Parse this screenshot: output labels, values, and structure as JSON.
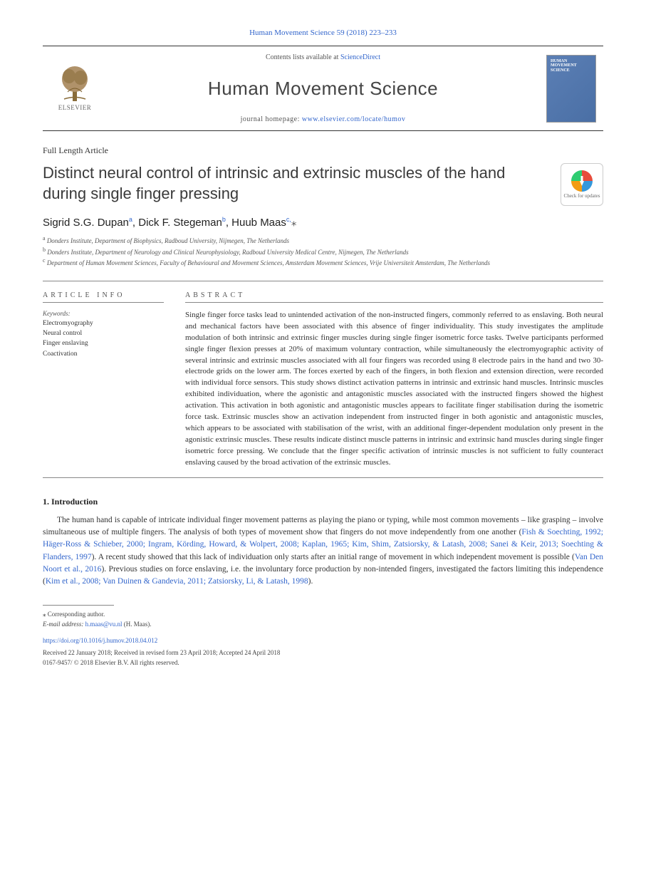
{
  "header": {
    "journal_ref": "Human Movement Science 59 (2018) 223–233",
    "contents_prefix": "Contents lists available at ",
    "contents_link": "ScienceDirect",
    "journal_name": "Human Movement Science",
    "homepage_prefix": "journal homepage: ",
    "homepage_url": "www.elsevier.com/locate/humov",
    "publisher_label": "ELSEVIER",
    "cover_text": "HUMAN\nMOVEMENT\nSCIENCE"
  },
  "article": {
    "type": "Full Length Article",
    "title": "Distinct neural control of intrinsic and extrinsic muscles of the hand during single finger pressing",
    "check_updates": "Check for updates",
    "authors_html": "Sigrid S.G. Dupan<sup>a</sup>, Dick F. Stegeman<sup>b</sup>, Huub Maas<sup>c,</sup><span class='corr'>⁎</span>",
    "affiliations": [
      "a Donders Institute, Department of Biophysics, Radboud University, Nijmegen, The Netherlands",
      "b Donders Institute, Department of Neurology and Clinical Neurophysiology, Radboud University Medical Centre, Nijmegen, The Netherlands",
      "c Department of Human Movement Sciences, Faculty of Behavioural and Movement Sciences, Amsterdam Movement Sciences, Vrije Universiteit Amsterdam, The Netherlands"
    ]
  },
  "info": {
    "label": "ARTICLE INFO",
    "keywords_label": "Keywords:",
    "keywords": [
      "Electromyography",
      "Neural control",
      "Finger enslaving",
      "Coactivation"
    ]
  },
  "abstract": {
    "label": "ABSTRACT",
    "text": "Single finger force tasks lead to unintended activation of the non-instructed fingers, commonly referred to as enslaving. Both neural and mechanical factors have been associated with this absence of finger individuality. This study investigates the amplitude modulation of both intrinsic and extrinsic finger muscles during single finger isometric force tasks. Twelve participants performed single finger flexion presses at 20% of maximum voluntary contraction, while simultaneously the electromyographic activity of several intrinsic and extrinsic muscles associated with all four fingers was recorded using 8 electrode pairs in the hand and two 30-electrode grids on the lower arm. The forces exerted by each of the fingers, in both flexion and extension direction, were recorded with individual force sensors. This study shows distinct activation patterns in intrinsic and extrinsic hand muscles. Intrinsic muscles exhibited individuation, where the agonistic and antagonistic muscles associated with the instructed fingers showed the highest activation. This activation in both agonistic and antagonistic muscles appears to facilitate finger stabilisation during the isometric force task. Extrinsic muscles show an activation independent from instructed finger in both agonistic and antagonistic muscles, which appears to be associated with stabilisation of the wrist, with an additional finger-dependent modulation only present in the agonistic extrinsic muscles. These results indicate distinct muscle patterns in intrinsic and extrinsic hand muscles during single finger isometric force pressing. We conclude that the finger specific activation of intrinsic muscles is not sufficient to fully counteract enslaving caused by the broad activation of the extrinsic muscles."
  },
  "intro": {
    "heading": "1. Introduction",
    "para1_pre": "The human hand is capable of intricate individual finger movement patterns as playing the piano or typing, while most common movements – like grasping – involve simultaneous use of multiple fingers. The analysis of both types of movement show that fingers do not move independently from one another (",
    "para1_cite1": "Fish & Soechting, 1992; Häger-Ross & Schieber, 2000; Ingram, Körding, Howard, & Wolpert, 2008; Kaplan, 1965; Kim, Shim, Zatsiorsky, & Latash, 2008; Sanei & Keir, 2013; Soechting & Flanders, 1997",
    "para1_mid": "). A recent study showed that this lack of individuation only starts after an initial range of movement in which independent movement is possible (",
    "para1_cite2": "Van Den Noort et al., 2016",
    "para1_post": "). Previous studies on force enslaving, i.e. the involuntary force production by non-intended fingers, investigated the factors limiting this independence (",
    "para1_cite3": "Kim et al., 2008; Van Duinen & Gandevia, 2011; Zatsiorsky, Li, & Latash, 1998",
    "para1_end": ")."
  },
  "footer": {
    "corr_label": "⁎ Corresponding author.",
    "email_label": "E-mail address: ",
    "email": "h.maas@vu.nl",
    "email_name": " (H. Maas).",
    "doi": "https://doi.org/10.1016/j.humov.2018.04.012",
    "dates": "Received 22 January 2018; Received in revised form 23 April 2018; Accepted 24 April 2018",
    "issn_copyright": "0167-9457/ © 2018 Elsevier B.V. All rights reserved."
  },
  "colors": {
    "link": "#3366cc",
    "text": "#333333",
    "cover_bg": "#5b7fb5"
  }
}
